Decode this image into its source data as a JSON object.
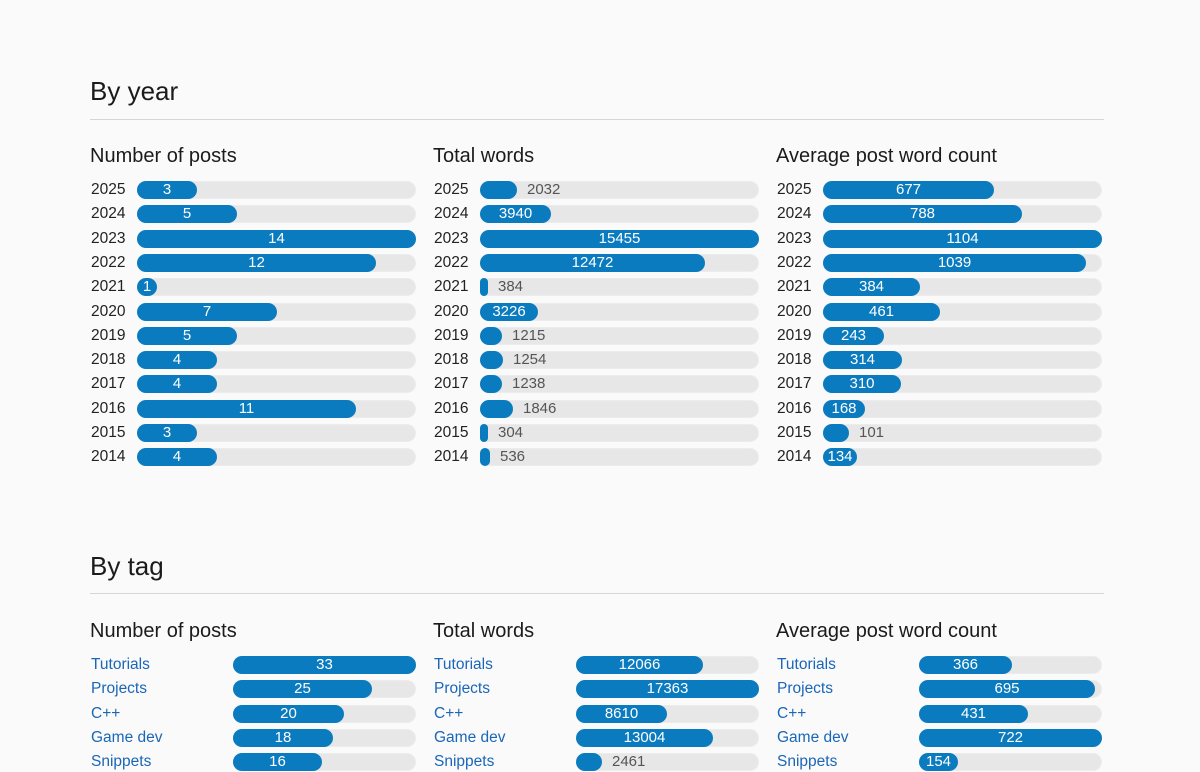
{
  "sections": [
    {
      "title": "By year",
      "tags": false,
      "charts": [
        {
          "title": "Number of posts",
          "chart_data": {
            "type": "bar",
            "categories": [
              "2025",
              "2024",
              "2023",
              "2022",
              "2021",
              "2020",
              "2019",
              "2018",
              "2017",
              "2016",
              "2015",
              "2014"
            ],
            "values": [
              3,
              5,
              14,
              12,
              1,
              7,
              5,
              4,
              4,
              11,
              3,
              4
            ],
            "xlim": [
              0,
              14
            ]
          }
        },
        {
          "title": "Total words",
          "chart_data": {
            "type": "bar",
            "categories": [
              "2025",
              "2024",
              "2023",
              "2022",
              "2021",
              "2020",
              "2019",
              "2018",
              "2017",
              "2016",
              "2015",
              "2014"
            ],
            "values": [
              2032,
              3940,
              15455,
              12472,
              384,
              3226,
              1215,
              1254,
              1238,
              1846,
              304,
              536
            ],
            "xlim": [
              0,
              15455
            ]
          }
        },
        {
          "title": "Average post word count",
          "chart_data": {
            "type": "bar",
            "categories": [
              "2025",
              "2024",
              "2023",
              "2022",
              "2021",
              "2020",
              "2019",
              "2018",
              "2017",
              "2016",
              "2015",
              "2014"
            ],
            "values": [
              677,
              788,
              1104,
              1039,
              384,
              461,
              243,
              314,
              310,
              168,
              101,
              134
            ],
            "xlim": [
              0,
              1104
            ]
          }
        }
      ]
    },
    {
      "title": "By tag",
      "tags": true,
      "charts": [
        {
          "title": "Number of posts",
          "chart_data": {
            "type": "bar",
            "categories": [
              "Tutorials",
              "Projects",
              "C++",
              "Game dev",
              "Snippets"
            ],
            "values": [
              33,
              25,
              20,
              18,
              16
            ],
            "xlim": [
              0,
              33
            ]
          }
        },
        {
          "title": "Total words",
          "chart_data": {
            "type": "bar",
            "categories": [
              "Tutorials",
              "Projects",
              "C++",
              "Game dev",
              "Snippets"
            ],
            "values": [
              12066,
              17363,
              8610,
              13004,
              2461
            ],
            "xlim": [
              0,
              17363
            ]
          }
        },
        {
          "title": "Average post word count",
          "chart_data": {
            "type": "bar",
            "categories": [
              "Tutorials",
              "Projects",
              "C++",
              "Game dev",
              "Snippets"
            ],
            "values": [
              366,
              695,
              431,
              722,
              154
            ],
            "xlim": [
              0,
              722
            ]
          }
        }
      ]
    }
  ],
  "colors": {
    "bar": "#0a7bbf",
    "track": "#e7e7e7",
    "tag_link": "#1a66b8"
  }
}
